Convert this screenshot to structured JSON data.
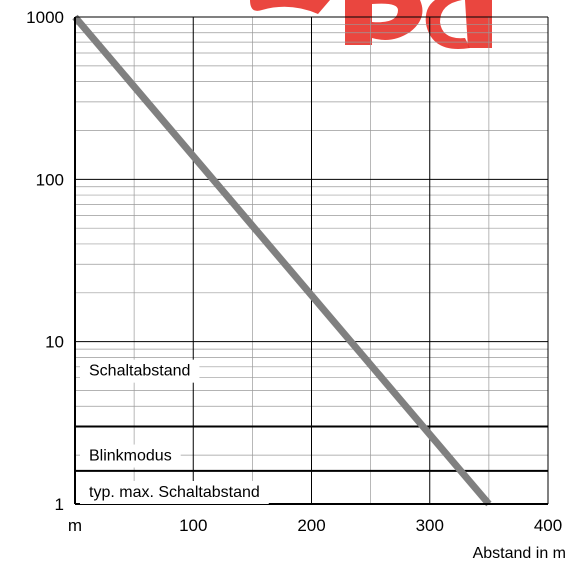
{
  "chart_data": {
    "type": "line",
    "title": "",
    "xlabel": "Abstand in m",
    "ylabel": "",
    "x_scale": "linear",
    "y_scale": "log",
    "xlim": [
      0,
      400
    ],
    "ylim": [
      1,
      1000
    ],
    "x_tick_labels": [
      "m",
      "100",
      "200",
      "300",
      "400"
    ],
    "y_tick_labels": [
      "1",
      "10",
      "100",
      "1000"
    ],
    "grid": true,
    "legend": "none",
    "series": [
      {
        "x": [
          0,
          350
        ],
        "y": [
          1000,
          1
        ],
        "color": "#808080"
      }
    ],
    "annotations": [
      {
        "text": "Schaltabstand",
        "y_min": 3,
        "y_max": 10
      },
      {
        "text": "Blinkmodus",
        "y_min": 1.6,
        "y_max": 3
      },
      {
        "text": "typ. max. Schaltabstand",
        "y_min": 1,
        "y_max": 1.6
      }
    ],
    "watermark_color": "#e8322a"
  }
}
